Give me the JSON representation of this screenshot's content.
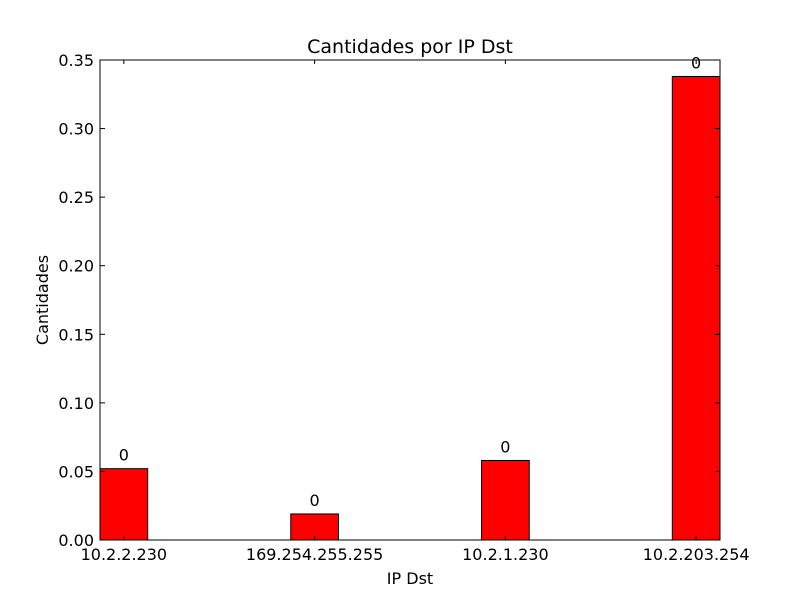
{
  "chart_data": {
    "type": "bar",
    "title": "Cantidades por IP Dst",
    "xlabel": "IP Dst",
    "ylabel": "Cantidades",
    "categories": [
      "10.2.2.230",
      "169.254.255.255",
      "10.2.1.230",
      "10.2.203.254"
    ],
    "values": [
      0.052,
      0.019,
      0.058,
      0.338
    ],
    "data_labels": [
      "0",
      "0",
      "0",
      "0"
    ],
    "ylim": [
      0,
      0.35
    ],
    "yticks": [
      "0.00",
      "0.05",
      "0.10",
      "0.15",
      "0.20",
      "0.25",
      "0.30",
      "0.35"
    ],
    "bar_color": "#ff0000",
    "edge_color": "#000000",
    "grid": false,
    "legend": "none"
  }
}
